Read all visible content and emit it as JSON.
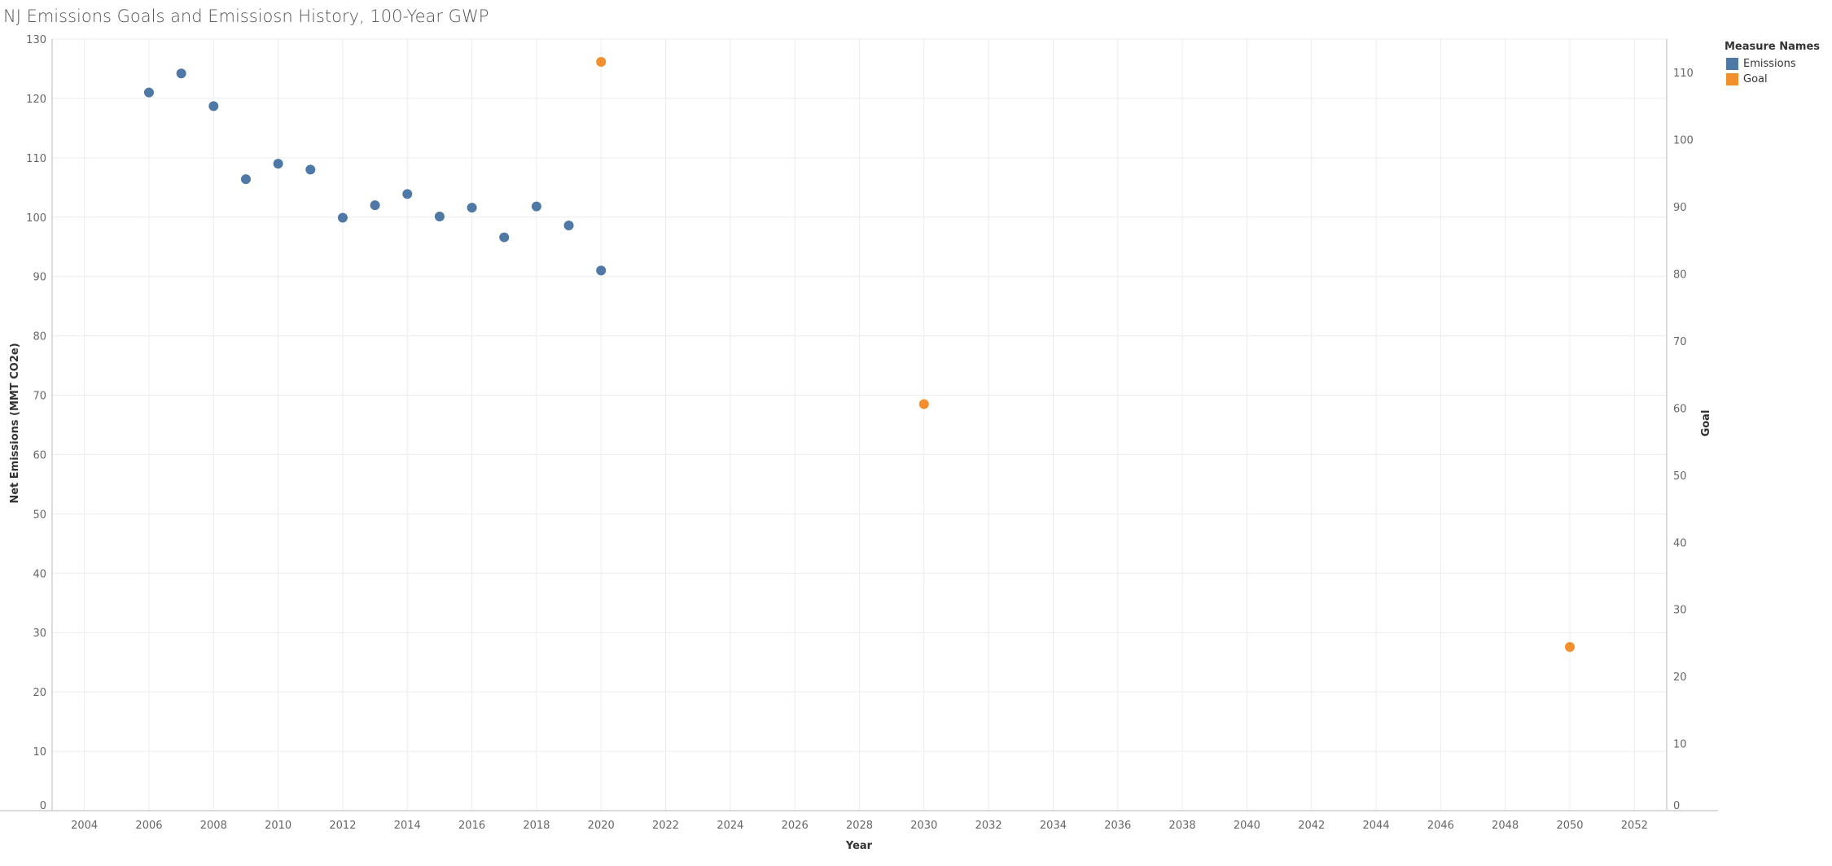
{
  "chart_data": {
    "type": "scatter",
    "title": "NJ Emissions Goals and Emissiosn History, 100-Year GWP",
    "xlabel": "Year",
    "ylabel_left": "Net Emissions (MMT CO2e)",
    "ylabel_right": "Goal",
    "xlim": [
      2003,
      2053
    ],
    "x_ticks": [
      2004,
      2006,
      2008,
      2010,
      2012,
      2014,
      2016,
      2018,
      2020,
      2022,
      2024,
      2026,
      2028,
      2030,
      2032,
      2034,
      2036,
      2038,
      2040,
      2042,
      2044,
      2046,
      2048,
      2050,
      2052
    ],
    "ylim_left": [
      0,
      130
    ],
    "y_ticks_left": [
      0,
      10,
      20,
      30,
      40,
      50,
      60,
      70,
      80,
      90,
      100,
      110,
      120,
      130
    ],
    "ylim_right": [
      0,
      115
    ],
    "y_ticks_right": [
      0,
      10,
      20,
      30,
      40,
      50,
      60,
      70,
      80,
      90,
      100,
      110
    ],
    "grid": true,
    "legend": {
      "title": "Measure Names",
      "placement": "right",
      "items": [
        {
          "name": "Emissions",
          "color": "#4e79a7"
        },
        {
          "name": "Goal",
          "color": "#f28e2b"
        }
      ]
    },
    "series": [
      {
        "name": "Emissions",
        "axis": "left",
        "color": "#4e79a7",
        "x": [
          2006,
          2007,
          2008,
          2009,
          2010,
          2011,
          2012,
          2013,
          2014,
          2015,
          2016,
          2017,
          2018,
          2019,
          2020
        ],
        "y": [
          121.0,
          124.2,
          118.7,
          106.4,
          109.0,
          108.0,
          99.9,
          102.0,
          103.9,
          100.1,
          101.6,
          96.6,
          101.8,
          98.6,
          91.0
        ]
      },
      {
        "name": "Goal",
        "axis": "right",
        "color": "#f28e2b",
        "x": [
          2020,
          2030,
          2050
        ],
        "y": [
          111.6,
          60.6,
          24.4
        ]
      }
    ]
  }
}
